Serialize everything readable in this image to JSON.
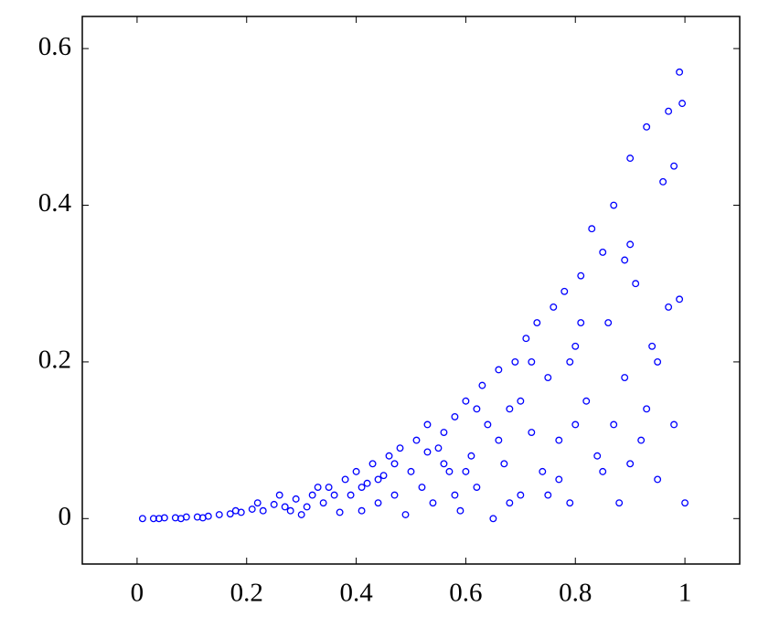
{
  "chart_data": {
    "type": "scatter",
    "color": "#0000ff",
    "x": [
      0.01,
      0.03,
      0.05,
      0.07,
      0.09,
      0.11,
      0.13,
      0.15,
      0.17,
      0.19,
      0.21,
      0.23,
      0.25,
      0.27,
      0.29,
      0.3,
      0.32,
      0.34,
      0.35,
      0.37,
      0.38,
      0.39,
      0.4,
      0.41,
      0.42,
      0.43,
      0.44,
      0.45,
      0.46,
      0.47,
      0.48,
      0.49,
      0.5,
      0.51,
      0.52,
      0.53,
      0.54,
      0.55,
      0.56,
      0.57,
      0.58,
      0.59,
      0.6,
      0.61,
      0.62,
      0.63,
      0.64,
      0.65,
      0.66,
      0.67,
      0.68,
      0.69,
      0.7,
      0.71,
      0.72,
      0.73,
      0.74,
      0.75,
      0.76,
      0.77,
      0.78,
      0.79,
      0.8,
      0.81,
      0.82,
      0.83,
      0.84,
      0.85,
      0.86,
      0.87,
      0.88,
      0.89,
      0.9,
      0.91,
      0.92,
      0.93,
      0.94,
      0.95,
      0.96,
      0.97,
      0.98,
      0.99,
      1.0,
      0.995,
      0.97,
      0.85,
      0.75,
      0.66,
      0.58,
      0.47,
      0.36,
      0.28,
      0.22,
      0.18,
      0.12,
      0.08,
      0.04,
      0.62,
      0.72,
      0.81,
      0.9,
      0.95,
      0.99,
      0.93,
      0.87,
      0.77,
      0.68,
      0.56,
      0.44,
      0.33,
      0.26,
      0.6,
      0.7,
      0.8,
      0.9,
      0.98,
      0.89,
      0.79,
      0.53,
      0.41,
      0.31
    ],
    "values": [
      0,
      0,
      0.001,
      0.001,
      0.002,
      0.002,
      0.003,
      0.005,
      0.006,
      0.008,
      0.012,
      0.01,
      0.018,
      0.015,
      0.025,
      0.005,
      0.03,
      0.02,
      0.04,
      0.008,
      0.05,
      0.03,
      0.06,
      0.01,
      0.045,
      0.07,
      0.02,
      0.055,
      0.08,
      0.03,
      0.09,
      0.005,
      0.06,
      0.1,
      0.04,
      0.12,
      0.02,
      0.09,
      0.11,
      0.06,
      0.13,
      0.01,
      0.15,
      0.08,
      0.04,
      0.17,
      0.12,
      0,
      0.19,
      0.07,
      0.14,
      0.2,
      0.03,
      0.23,
      0.11,
      0.25,
      0.06,
      0.18,
      0.27,
      0.1,
      0.29,
      0.02,
      0.22,
      0.31,
      0.15,
      0.37,
      0.08,
      0.34,
      0.25,
      0.4,
      0.02,
      0.18,
      0.46,
      0.3,
      0.1,
      0.5,
      0.22,
      0.05,
      0.43,
      0.27,
      0.12,
      0.57,
      0.02,
      0.53,
      0.52,
      0.06,
      0.03,
      0.1,
      0.03,
      0.07,
      0.03,
      0.01,
      0.02,
      0.01,
      0.001,
      0,
      0,
      0.14,
      0.2,
      0.25,
      0.35,
      0.2,
      0.28,
      0.14,
      0.12,
      0.05,
      0.02,
      0.07,
      0.05,
      0.04,
      0.03,
      0.06,
      0.15,
      0.12,
      0.07,
      0.45,
      0.33,
      0.2,
      0.085,
      0.04,
      0.015
    ],
    "xlim": [
      -0.1,
      1.1
    ],
    "ylim": [
      -0.058,
      0.641
    ],
    "xticks": [
      0,
      0.2,
      0.4,
      0.6,
      0.8,
      1
    ],
    "yticks": [
      0,
      0.2,
      0.4,
      0.6
    ],
    "grid": false
  }
}
